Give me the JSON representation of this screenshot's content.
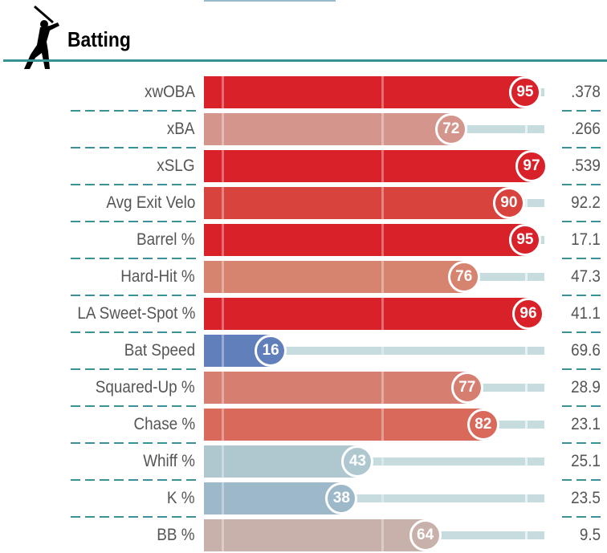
{
  "section": {
    "title": "Batting",
    "icon": "batter-silhouette-icon"
  },
  "rows": [
    {
      "label": "xwOBA",
      "percentile": 95,
      "value": ".378",
      "color": "#d82129"
    },
    {
      "label": "xBA",
      "percentile": 72,
      "value": ".266",
      "color": "#d4968c"
    },
    {
      "label": "xSLG",
      "percentile": 97,
      "value": ".539",
      "color": "#d82129"
    },
    {
      "label": "Avg Exit Velo",
      "percentile": 90,
      "value": "92.2",
      "color": "#d9433e"
    },
    {
      "label": "Barrel %",
      "percentile": 95,
      "value": "17.1",
      "color": "#d82129"
    },
    {
      "label": "Hard-Hit %",
      "percentile": 76,
      "value": "47.3",
      "color": "#d6836f"
    },
    {
      "label": "LA Sweet-Spot %",
      "percentile": 96,
      "value": "41.1",
      "color": "#d82129"
    },
    {
      "label": "Bat Speed",
      "percentile": 16,
      "value": "69.6",
      "color": "#6180bb"
    },
    {
      "label": "Squared-Up %",
      "percentile": 77,
      "value": "28.9",
      "color": "#d67e70"
    },
    {
      "label": "Chase %",
      "percentile": 82,
      "value": "23.1",
      "color": "#d9695b"
    },
    {
      "label": "Whiff %",
      "percentile": 43,
      "value": "25.1",
      "color": "#afc8cf"
    },
    {
      "label": "K %",
      "percentile": 38,
      "value": "23.5",
      "color": "#9db8c9"
    },
    {
      "label": "BB %",
      "percentile": 64,
      "value": "9.5",
      "color": "#c9b1ab"
    }
  ]
}
